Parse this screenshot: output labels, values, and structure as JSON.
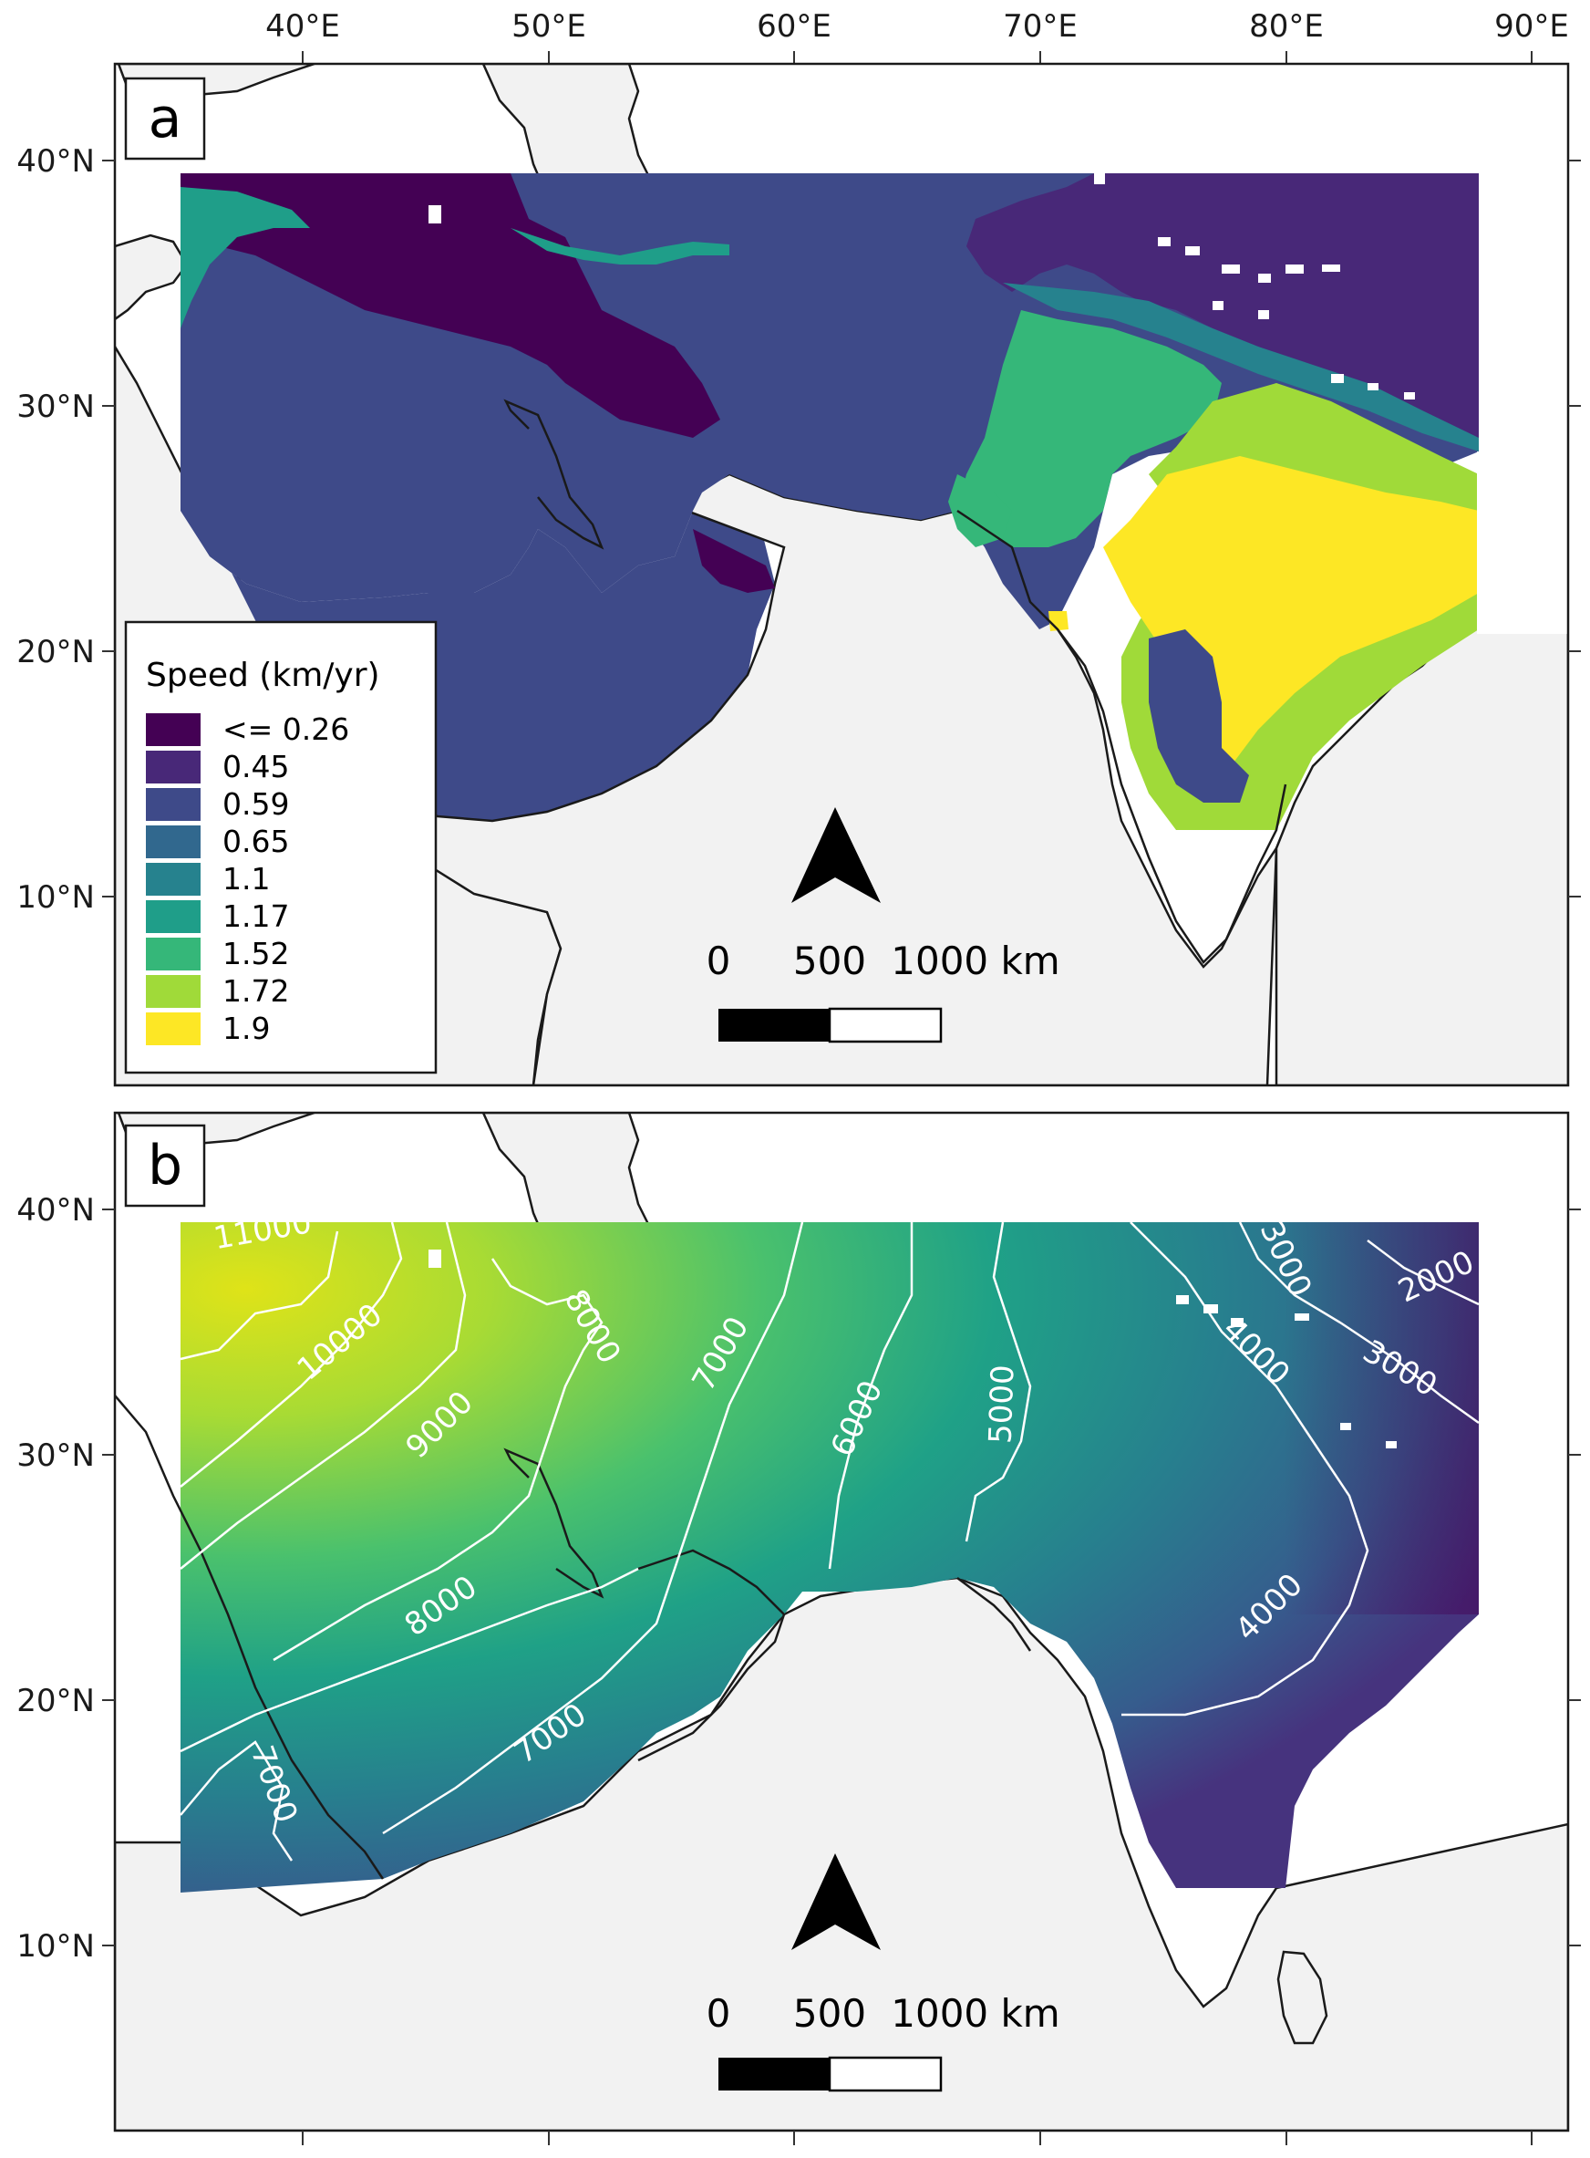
{
  "x_ticks": [
    "40°E",
    "50°E",
    "60°E",
    "70°E",
    "80°E",
    "90°E"
  ],
  "y_ticks": [
    "40°N",
    "30°N",
    "20°N",
    "10°N"
  ],
  "panels": [
    {
      "letter": "a",
      "legend": {
        "title": "Speed (km/yr)",
        "items": [
          {
            "label": "<= 0.26",
            "color": "#440154"
          },
          {
            "label": "0.45",
            "color": "#482878"
          },
          {
            "label": "0.59",
            "color": "#3e4a89"
          },
          {
            "label": "0.65",
            "color": "#31688e"
          },
          {
            "label": "1.1",
            "color": "#26828e"
          },
          {
            "label": "1.17",
            "color": "#1f9e89"
          },
          {
            "label": "1.52",
            "color": "#35b779"
          },
          {
            "label": "1.72",
            "color": "#a0da39"
          },
          {
            "label": "1.9",
            "color": "#fde725"
          }
        ]
      },
      "scale_bar": {
        "labels": [
          "0",
          "500",
          "1000 km"
        ]
      }
    },
    {
      "letter": "b",
      "contour_labels": [
        "11000",
        "10000",
        "9000",
        "8000",
        "8000",
        "7000",
        "7000",
        "7000",
        "6000",
        "5000",
        "4000",
        "4000",
        "3000",
        "3000",
        "2000"
      ],
      "scale_bar": {
        "labels": [
          "0",
          "500",
          "1000 km"
        ]
      }
    }
  ],
  "colors": {
    "land_background": "#f2f2f2",
    "coast": "#1a1a1a",
    "contour": "#ffffff"
  }
}
